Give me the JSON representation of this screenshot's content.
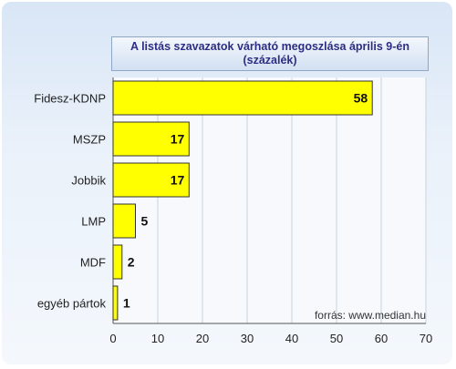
{
  "chart_data": {
    "type": "bar",
    "orientation": "horizontal",
    "title": "A listás szavazatok várható megoszlása április 9-én",
    "subtitle": "(százalék)",
    "categories": [
      "Fidesz-KDNP",
      "MSZP",
      "Jobbik",
      "LMP",
      "MDF",
      "egyéb pártok"
    ],
    "values": [
      58,
      17,
      17,
      5,
      2,
      1
    ],
    "data_labels": [
      "58",
      "17",
      "17",
      "5",
      "2",
      "1"
    ],
    "xlim": [
      0,
      70
    ],
    "xticks": [
      "0",
      "10",
      "20",
      "30",
      "40",
      "50",
      "60",
      "70"
    ],
    "xlabel": "",
    "ylabel": "",
    "grid": true,
    "bar_color": "#ffff00",
    "annotation": "forrás: www.median.hu"
  }
}
